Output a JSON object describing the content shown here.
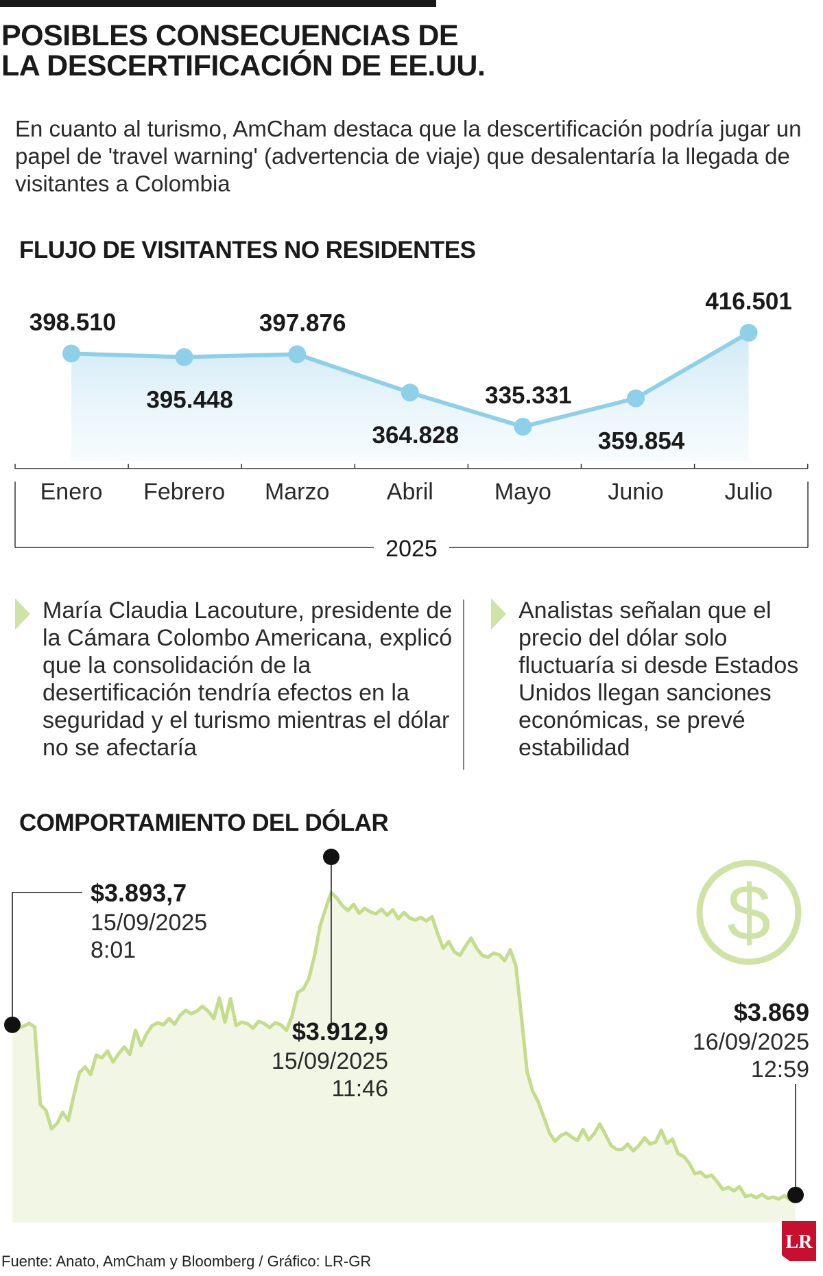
{
  "header": {
    "title": "POSIBLES CONSECUENCIAS DE\nLA DESCERTIFICACIÓN DE EE.UU.",
    "intro": "En cuanto al turismo, AmCham destaca que la descertificación podría jugar un papel de 'travel warning' (advertencia de viaje) que desalentaría la llegada de visitantes a Colombia"
  },
  "visitors_section": {
    "title": "FLUJO DE VISITANTES NO RESIDENTES",
    "year_label": "2025"
  },
  "notes": {
    "left": "María Claudia Lacouture, presidente de la Cámara Colombo Americana, explicó que la consolidación de la desertificación tendría efectos en la seguridad y el turismo mientras el dólar no se afectaría",
    "right": "Analistas señalan que el precio del dólar solo fluctuaría si desde Estados Unidos llegan sanciones económicas, se prevé estabilidad"
  },
  "dollar_section": {
    "title": "COMPORTAMIENTO DEL DÓLAR",
    "icon": "dollar-icon"
  },
  "footer": {
    "source": "Fuente: Anato, AmCham y Bloomberg / Gráfico: LR-GR",
    "logo": "LR"
  },
  "colors": {
    "visitors_line": "#8dd0e8",
    "visitors_area": "#dff0f8",
    "dollar_line": "#c4dc8c",
    "dollar_area": "#f1f7e4",
    "dollar_icon": "#cfe3a6",
    "marker_arrow": "#d8e8b4",
    "logo": "#c8102e"
  },
  "chart_data": [
    {
      "type": "area",
      "title": "FLUJO DE VISITANTES NO RESIDENTES",
      "categories": [
        "Enero",
        "Febrero",
        "Marzo",
        "Abril",
        "Mayo",
        "Junio",
        "Julio"
      ],
      "values": [
        398510,
        395448,
        397876,
        364828,
        335331,
        359854,
        416501
      ],
      "data_labels": [
        "398.510",
        "395.448",
        "397.876",
        "364.828",
        "335.331",
        "359.854",
        "416.501"
      ],
      "label_position": [
        "above",
        "below",
        "above",
        "below",
        "above",
        "below",
        "above"
      ],
      "xlabel": "2025",
      "grid": false
    },
    {
      "type": "area",
      "title": "COMPORTAMIENTO DEL DÓLAR",
      "x_range": [
        "15/09/2025 8:01",
        "16/09/2025 12:59"
      ],
      "ylim": [
        3866,
        3915
      ],
      "series": [
        {
          "values": [
            3893.7,
            3893.2,
            3893.5,
            3893.9,
            3893.4,
            3882.1,
            3881.3,
            3878.6,
            3879.4,
            3881.0,
            3879.8,
            3883.5,
            3886.8,
            3887.6,
            3886.5,
            3889.3,
            3888.9,
            3889.9,
            3888.3,
            3889.5,
            3890.5,
            3889.4,
            3892.9,
            3890.7,
            3892.4,
            3893.6,
            3894.0,
            3893.7,
            3894.6,
            3893.8,
            3895.1,
            3895.8,
            3895.3,
            3895.7,
            3896.4,
            3895.7,
            3894.6,
            3897.6,
            3894.1,
            3897.5,
            3893.6,
            3894.1,
            3893.9,
            3893.2,
            3894.2,
            3893.9,
            3893.3,
            3894.0,
            3893.7,
            3892.9,
            3895.0,
            3898.4,
            3898.9,
            3900.4,
            3903.7,
            3908.0,
            3910.6,
            3912.9,
            3912.1,
            3911.0,
            3910.3,
            3911.2,
            3909.9,
            3910.6,
            3910.1,
            3909.8,
            3910.5,
            3909.6,
            3910.4,
            3909.1,
            3910.0,
            3909.2,
            3908.9,
            3909.3,
            3908.8,
            3909.4,
            3907.0,
            3904.8,
            3905.8,
            3904.3,
            3903.8,
            3905.1,
            3906.3,
            3904.8,
            3903.8,
            3903.5,
            3904.1,
            3903.9,
            3903.0,
            3904.6,
            3902.3,
            3894.9,
            3886.9,
            3884.1,
            3882.5,
            3880.3,
            3878.0,
            3876.8,
            3877.6,
            3878.0,
            3877.4,
            3876.9,
            3878.5,
            3877.0,
            3877.9,
            3879.3,
            3877.8,
            3876.2,
            3875.6,
            3875.6,
            3876.4,
            3875.4,
            3876.2,
            3877.3,
            3876.4,
            3876.7,
            3878.4,
            3876.5,
            3877.1,
            3875.0,
            3874.6,
            3873.6,
            3872.1,
            3872.3,
            3871.6,
            3871.9,
            3870.9,
            3869.8,
            3870.1,
            3869.6,
            3870.2,
            3868.8,
            3869.0,
            3868.6,
            3869.1,
            3868.5,
            3868.7,
            3868.4,
            3868.9,
            3868.3,
            3869.0
          ]
        }
      ],
      "annotations": [
        {
          "value": "$3.893,7",
          "date": "15/09/2025",
          "time": "8:01"
        },
        {
          "value": "$3.912,9",
          "date": "15/09/2025",
          "time": "11:46"
        },
        {
          "value": "$3.869",
          "date": "16/09/2025",
          "time": "12:59"
        }
      ],
      "grid": false
    }
  ]
}
